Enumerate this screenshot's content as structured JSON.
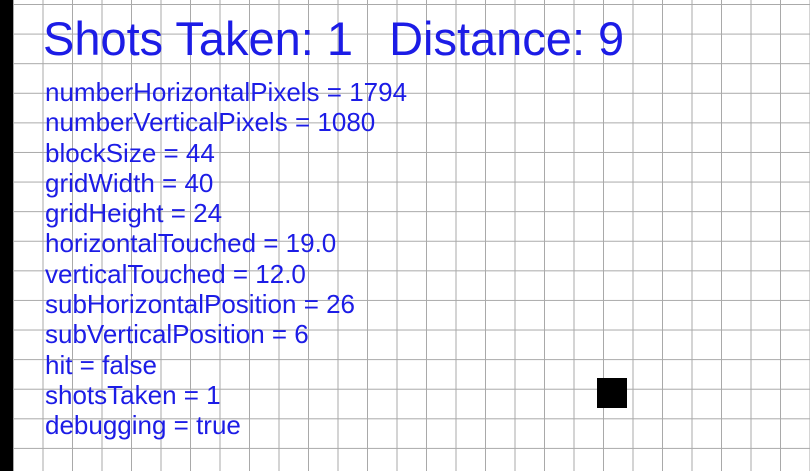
{
  "status": {
    "shots_label": "Shots Taken: 1",
    "distance_label": "Distance: 9"
  },
  "debug_lines": [
    "numberHorizontalPixels = 1794",
    "numberVerticalPixels = 1080",
    "blockSize = 44",
    "gridWidth = 40",
    "gridHeight = 24",
    "horizontalTouched = 19.0",
    "verticalTouched = 12.0",
    "subHorizontalPosition = 26",
    "subVerticalPosition = 6",
    "hit = false",
    "shotsTaken = 1",
    "debugging = true"
  ],
  "colors": {
    "text": "#1c1ce6",
    "grid_line": "#a9a9a9",
    "background": "#ffffff",
    "target": "#000000"
  }
}
